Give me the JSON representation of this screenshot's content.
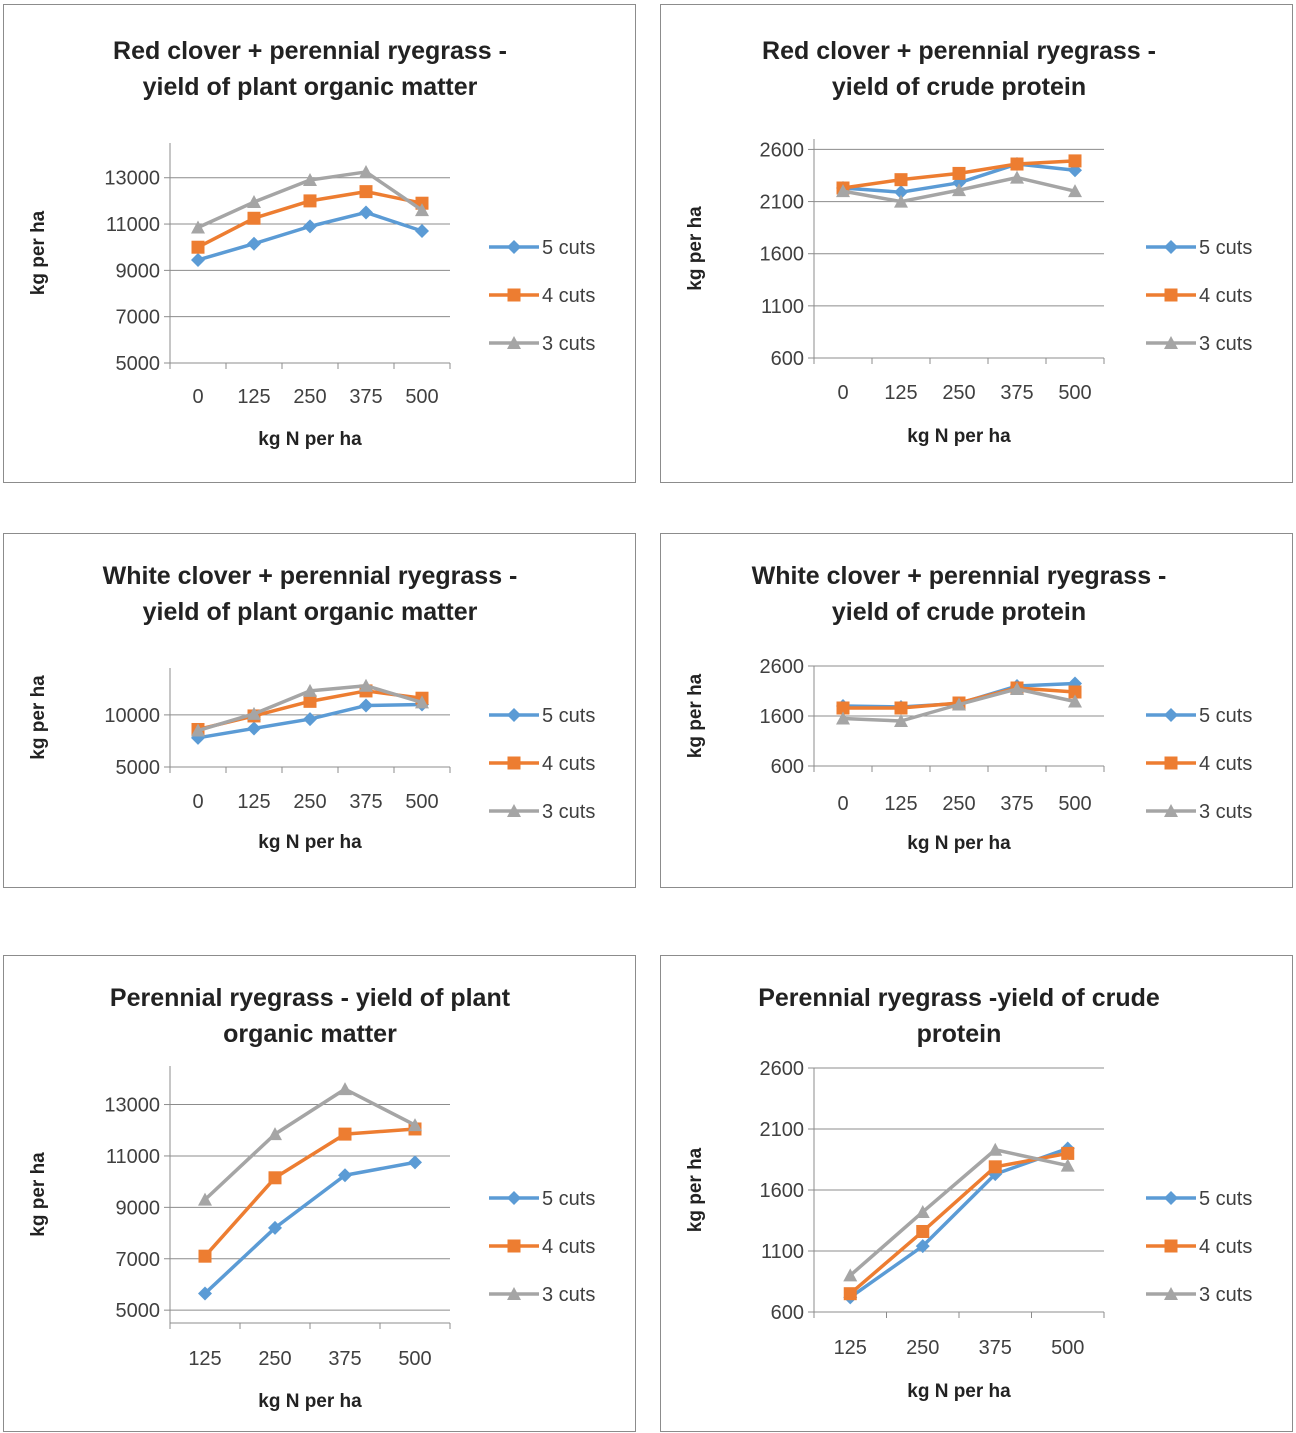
{
  "colors": {
    "5 cuts": "#5b9bd5",
    "4 cuts": "#ed7d31",
    "3 cuts": "#a5a5a5"
  },
  "chart_data": [
    {
      "type": "line",
      "title": [
        "Red clover + perennial ryegrass -",
        "yield of plant organic matter"
      ],
      "xlabel": "kg N per ha",
      "ylabel": "kg per ha",
      "categories": [
        "0",
        "125",
        "250",
        "375",
        "500"
      ],
      "yticks": [
        5000,
        7000,
        9000,
        11000,
        13000
      ],
      "ylim": [
        5000,
        14500
      ],
      "legend": "right",
      "series": [
        {
          "name": "5 cuts",
          "marker": "diamond",
          "values": [
            9450,
            10150,
            10900,
            11500,
            10700
          ]
        },
        {
          "name": "4 cuts",
          "marker": "square",
          "values": [
            10000,
            11250,
            12000,
            12400,
            11900
          ]
        },
        {
          "name": "3 cuts",
          "marker": "triangle",
          "values": [
            10850,
            11950,
            12900,
            13250,
            11600
          ]
        }
      ]
    },
    {
      "type": "line",
      "title": [
        "Red clover + perennial ryegrass -",
        "yield of crude protein"
      ],
      "xlabel": "kg N per ha",
      "ylabel": "kg per ha",
      "categories": [
        "0",
        "125",
        "250",
        "375",
        "500"
      ],
      "yticks": [
        600,
        1100,
        1600,
        2100,
        2600
      ],
      "ylim": [
        600,
        2700
      ],
      "legend": "right",
      "series": [
        {
          "name": "5 cuts",
          "marker": "diamond",
          "values": [
            2230,
            2190,
            2280,
            2460,
            2400
          ]
        },
        {
          "name": "4 cuts",
          "marker": "square",
          "values": [
            2230,
            2310,
            2370,
            2460,
            2490
          ]
        },
        {
          "name": "3 cuts",
          "marker": "triangle",
          "values": [
            2200,
            2100,
            2210,
            2330,
            2200
          ]
        }
      ]
    },
    {
      "type": "line",
      "title": [
        "White clover + perennial ryegrass -",
        "yield of plant organic matter"
      ],
      "xlabel": "kg N per ha",
      "ylabel": "kg per ha",
      "categories": [
        "0",
        "125",
        "250",
        "375",
        "500"
      ],
      "yticks": [
        5000,
        10000
      ],
      "ylim": [
        5000,
        14500
      ],
      "legend": "right",
      "series": [
        {
          "name": "5 cuts",
          "marker": "diamond",
          "values": [
            7800,
            8700,
            9600,
            10900,
            11000
          ]
        },
        {
          "name": "4 cuts",
          "marker": "square",
          "values": [
            8600,
            9900,
            11300,
            12300,
            11600
          ]
        },
        {
          "name": "3 cuts",
          "marker": "triangle",
          "values": [
            8500,
            10100,
            12300,
            12800,
            11200
          ]
        }
      ]
    },
    {
      "type": "line",
      "title": [
        "White clover + perennial ryegrass -",
        "yield of crude protein"
      ],
      "xlabel": "kg N per ha",
      "ylabel": "kg per ha",
      "categories": [
        "0",
        "125",
        "250",
        "375",
        "500"
      ],
      "yticks": [
        600,
        1600,
        2600
      ],
      "ylim": [
        600,
        2600
      ],
      "legend": "right",
      "series": [
        {
          "name": "5 cuts",
          "marker": "diamond",
          "values": [
            1800,
            1780,
            1850,
            2200,
            2250
          ]
        },
        {
          "name": "4 cuts",
          "marker": "square",
          "values": [
            1760,
            1760,
            1860,
            2160,
            2080
          ]
        },
        {
          "name": "3 cuts",
          "marker": "triangle",
          "values": [
            1550,
            1500,
            1830,
            2140,
            1890
          ]
        }
      ]
    },
    {
      "type": "line",
      "title": [
        "Perennial ryegrass - yield of plant",
        "organic matter"
      ],
      "xlabel": "kg N per ha",
      "ylabel": "kg per ha",
      "categories": [
        "125",
        "250",
        "375",
        "500"
      ],
      "yticks": [
        5000,
        7000,
        9000,
        11000,
        13000
      ],
      "ylim": [
        4500,
        14500
      ],
      "legend": "right",
      "series": [
        {
          "name": "5 cuts",
          "marker": "diamond",
          "values": [
            5650,
            8200,
            10250,
            10750
          ]
        },
        {
          "name": "4 cuts",
          "marker": "square",
          "values": [
            7100,
            10150,
            11850,
            12050
          ]
        },
        {
          "name": "3 cuts",
          "marker": "triangle",
          "values": [
            9300,
            11850,
            13600,
            12200
          ]
        }
      ]
    },
    {
      "type": "line",
      "title": [
        "Perennial ryegrass -yield of crude",
        "protein"
      ],
      "xlabel": "kg N per ha",
      "ylabel": "kg per ha",
      "categories": [
        "125",
        "250",
        "375",
        "500"
      ],
      "yticks": [
        600,
        1100,
        1600,
        2100,
        2600
      ],
      "ylim": [
        600,
        2600
      ],
      "legend": "right",
      "series": [
        {
          "name": "5 cuts",
          "marker": "diamond",
          "values": [
            720,
            1140,
            1730,
            1940
          ]
        },
        {
          "name": "4 cuts",
          "marker": "square",
          "values": [
            750,
            1260,
            1790,
            1900
          ]
        },
        {
          "name": "3 cuts",
          "marker": "triangle",
          "values": [
            900,
            1420,
            1930,
            1800
          ]
        }
      ]
    }
  ]
}
